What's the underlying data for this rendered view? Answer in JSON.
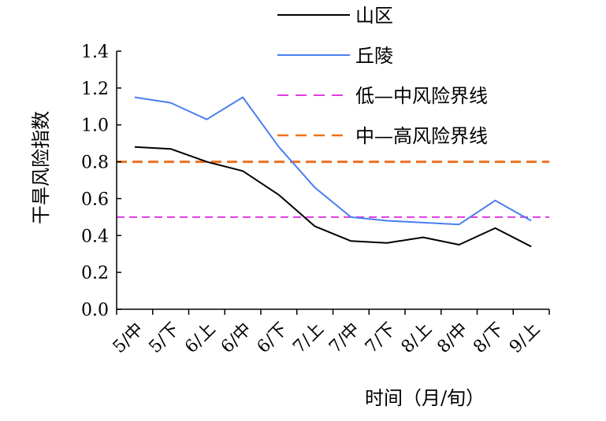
{
  "chart_data": {
    "type": "line",
    "title": "",
    "xlabel": "时间（月/旬）",
    "ylabel": "干旱风险指数",
    "categories": [
      "5/中",
      "5/下",
      "6/上",
      "6/中",
      "6/下",
      "7/上",
      "7/中",
      "7/下",
      "8/上",
      "8/中",
      "8/下",
      "9/上"
    ],
    "yticks": [
      "0.0",
      "0.2",
      "0.4",
      "0.6",
      "0.8",
      "1.0",
      "1.2",
      "1.4"
    ],
    "ylim": [
      0,
      1.4
    ],
    "grid": false,
    "legend_position": "top-right",
    "series": [
      {
        "name": "山区",
        "color": "#000000",
        "style": "solid",
        "values": [
          0.88,
          0.87,
          0.8,
          0.75,
          0.62,
          0.45,
          0.37,
          0.36,
          0.39,
          0.35,
          0.44,
          0.34
        ]
      },
      {
        "name": "丘陵",
        "color": "#4a7ef0",
        "style": "solid",
        "values": [
          1.15,
          1.12,
          1.03,
          1.15,
          0.88,
          0.66,
          0.5,
          0.48,
          0.47,
          0.46,
          0.59,
          0.48
        ]
      }
    ],
    "reference_lines": [
      {
        "name": "低—中风险界线",
        "value": 0.5,
        "color": "#e03ce0",
        "style": "dashed"
      },
      {
        "name": "中—高风险界线",
        "value": 0.8,
        "color": "#ee7020",
        "style": "dashed"
      }
    ]
  }
}
